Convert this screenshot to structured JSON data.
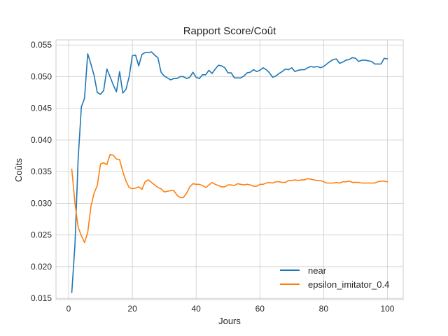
{
  "chart_data": {
    "type": "line",
    "title": "Rapport Score/Coût",
    "xlabel": "Jours",
    "ylabel": "Coûts",
    "xlim": [
      -3.95,
      104.95
    ],
    "ylim": [
      0.0148,
      0.0558
    ],
    "xticks": [
      0,
      20,
      40,
      60,
      80,
      100
    ],
    "yticks": [
      0.015,
      0.02,
      0.025,
      0.03,
      0.035,
      0.04,
      0.045,
      0.05,
      0.055
    ],
    "xtick_labels": [
      "0",
      "20",
      "40",
      "60",
      "80",
      "100"
    ],
    "ytick_labels": [
      "0.015",
      "0.020",
      "0.025",
      "0.030",
      "0.035",
      "0.040",
      "0.045",
      "0.050",
      "0.055"
    ],
    "grid": true,
    "legend_position": "lower-right",
    "x": [
      1,
      2,
      3,
      4,
      5,
      6,
      7,
      8,
      9,
      10,
      11,
      12,
      13,
      14,
      15,
      16,
      17,
      18,
      19,
      20,
      21,
      22,
      23,
      24,
      25,
      26,
      27,
      28,
      29,
      30,
      31,
      32,
      33,
      34,
      35,
      36,
      37,
      38,
      39,
      40,
      41,
      42,
      43,
      44,
      45,
      46,
      47,
      48,
      49,
      50,
      51,
      52,
      53,
      54,
      55,
      56,
      57,
      58,
      59,
      60,
      61,
      62,
      63,
      64,
      65,
      66,
      67,
      68,
      69,
      70,
      71,
      72,
      73,
      74,
      75,
      76,
      77,
      78,
      79,
      80,
      81,
      82,
      83,
      84,
      85,
      86,
      87,
      88,
      89,
      90,
      91,
      92,
      93,
      94,
      95,
      96,
      97,
      98,
      99,
      100
    ],
    "series": [
      {
        "name": "near",
        "color": "#1f77b4",
        "values": [
          0.0159,
          0.0235,
          0.037,
          0.0452,
          0.0466,
          0.0536,
          0.052,
          0.0502,
          0.0475,
          0.0472,
          0.0478,
          0.0512,
          0.05,
          0.0487,
          0.0476,
          0.0508,
          0.0474,
          0.048,
          0.05,
          0.0533,
          0.0534,
          0.0517,
          0.0535,
          0.0538,
          0.0538,
          0.0539,
          0.0534,
          0.053,
          0.0507,
          0.0501,
          0.0498,
          0.0495,
          0.0497,
          0.0497,
          0.05,
          0.05,
          0.0497,
          0.0499,
          0.0507,
          0.0499,
          0.0497,
          0.0503,
          0.0503,
          0.051,
          0.0505,
          0.0512,
          0.0518,
          0.0517,
          0.0514,
          0.0506,
          0.0506,
          0.0498,
          0.0498,
          0.0498,
          0.0501,
          0.0506,
          0.0507,
          0.0511,
          0.0508,
          0.051,
          0.0514,
          0.0511,
          0.0506,
          0.0499,
          0.0501,
          0.0505,
          0.0508,
          0.0512,
          0.0511,
          0.0514,
          0.0508,
          0.051,
          0.0511,
          0.0511,
          0.0514,
          0.0516,
          0.0515,
          0.0516,
          0.0514,
          0.0516,
          0.052,
          0.0524,
          0.0527,
          0.0528,
          0.0521,
          0.0523,
          0.0526,
          0.0527,
          0.053,
          0.0529,
          0.0524,
          0.0526,
          0.0526,
          0.0525,
          0.0524,
          0.052,
          0.052,
          0.052,
          0.0529,
          0.0528
        ]
      },
      {
        "name": "epsilon_imitator_0.4",
        "color": "#ff7f0e",
        "values": [
          0.0354,
          0.03,
          0.0262,
          0.0249,
          0.0238,
          0.0254,
          0.0295,
          0.0316,
          0.0328,
          0.0362,
          0.0364,
          0.0361,
          0.0377,
          0.0376,
          0.037,
          0.0369,
          0.035,
          0.0335,
          0.0325,
          0.0323,
          0.0324,
          0.0326,
          0.0322,
          0.0334,
          0.0337,
          0.0333,
          0.0329,
          0.0325,
          0.0323,
          0.0318,
          0.0319,
          0.032,
          0.032,
          0.0313,
          0.0309,
          0.0309,
          0.0316,
          0.0326,
          0.0331,
          0.033,
          0.033,
          0.0328,
          0.0325,
          0.0329,
          0.0333,
          0.033,
          0.0328,
          0.0326,
          0.0326,
          0.0329,
          0.0329,
          0.0328,
          0.0331,
          0.033,
          0.0329,
          0.033,
          0.0329,
          0.0327,
          0.0327,
          0.033,
          0.033,
          0.0332,
          0.0333,
          0.0332,
          0.0334,
          0.0334,
          0.0333,
          0.0333,
          0.0336,
          0.0336,
          0.0337,
          0.0336,
          0.0337,
          0.0337,
          0.0339,
          0.0338,
          0.0337,
          0.0336,
          0.0336,
          0.0334,
          0.0332,
          0.0332,
          0.0332,
          0.0333,
          0.0332,
          0.0334,
          0.0334,
          0.0335,
          0.0333,
          0.0333,
          0.0333,
          0.0332,
          0.0332,
          0.0332,
          0.0332,
          0.0332,
          0.0334,
          0.0335,
          0.0335,
          0.0334
        ]
      }
    ]
  }
}
